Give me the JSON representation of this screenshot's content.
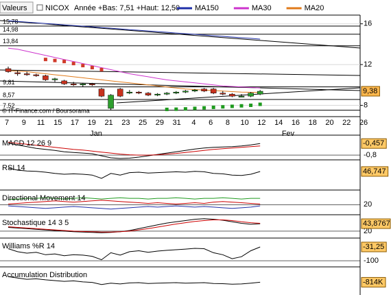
{
  "chart_data": [
    {
      "type": "candlestick",
      "header_label": "Valeurs",
      "title": "NICOX",
      "subtitle": "Année +Bas: 7,51 +Haut: 12,50",
      "annotation": "© IT-Finance.com / Boursorama",
      "x_labels": [
        "7",
        "9",
        "11",
        "15",
        "17",
        "19",
        "21",
        "23",
        "25",
        "29",
        "31",
        "4",
        "6",
        "8",
        "10",
        "12",
        "14",
        "16",
        "18",
        "20",
        "22",
        "26"
      ],
      "months": [
        "Jan",
        "Fev"
      ],
      "open": [
        11.6,
        11.2,
        11.1,
        11.0,
        10.9,
        10.5,
        10.4,
        10.1,
        10.0,
        10.1,
        9.6,
        7.7,
        9.6,
        9.3,
        9.3,
        9.2,
        9.0,
        9.1,
        9.2,
        9.3,
        9.4,
        9.6,
        9.6,
        9.2,
        9.1,
        8.9,
        8.9,
        9.1
      ],
      "high": [
        11.8,
        11.4,
        11.3,
        11.1,
        11.0,
        10.7,
        10.5,
        10.3,
        10.2,
        10.2,
        9.7,
        9.1,
        9.7,
        9.5,
        9.4,
        9.3,
        9.2,
        9.3,
        9.4,
        9.5,
        9.6,
        9.7,
        9.7,
        9.4,
        9.2,
        9.1,
        9.3,
        9.5
      ],
      "low": [
        11.2,
        10.9,
        10.9,
        10.8,
        10.4,
        10.3,
        10.0,
        9.9,
        9.8,
        9.9,
        8.8,
        7.5,
        8.8,
        9.1,
        9.1,
        8.9,
        8.9,
        9.0,
        9.1,
        9.2,
        9.3,
        9.3,
        9.1,
        9.0,
        8.8,
        8.8,
        8.8,
        9.0
      ],
      "close": [
        11.3,
        11.1,
        11.0,
        10.9,
        10.5,
        10.6,
        10.1,
        10.0,
        10.1,
        10.0,
        8.9,
        9.0,
        8.9,
        9.3,
        9.2,
        9.0,
        9.1,
        9.2,
        9.3,
        9.4,
        9.5,
        9.4,
        9.2,
        9.1,
        8.9,
        8.9,
        9.2,
        9.38
      ],
      "up_color": "#2e9e2e",
      "down_color": "#c8321e",
      "series": [
        {
          "name": "MA150",
          "color": "#1f2fa8",
          "values": [
            16.3,
            16.23,
            16.17,
            16.1,
            16.03,
            15.97,
            15.9,
            15.83,
            15.77,
            15.7,
            15.63,
            15.57,
            15.5,
            15.43,
            15.37,
            15.3,
            15.23,
            15.17,
            15.1,
            15.03,
            14.97,
            14.9,
            14.83,
            14.77,
            14.7,
            14.63,
            14.57,
            14.5
          ]
        },
        {
          "name": "MA30",
          "color": "#cc33cc",
          "values": [
            13.6,
            13.5,
            13.3,
            13.1,
            12.9,
            12.7,
            12.5,
            12.3,
            12.1,
            11.9,
            11.7,
            11.5,
            11.3,
            11.1,
            10.95,
            10.8,
            10.65,
            10.5,
            10.4,
            10.3,
            10.2,
            10.1,
            10.0,
            9.9,
            9.85,
            9.8,
            9.75,
            9.7
          ]
        },
        {
          "name": "MA20",
          "color": "#e07a1a",
          "values": [
            11.4,
            11.35,
            11.3,
            11.2,
            11.1,
            11.0,
            10.9,
            10.8,
            10.7,
            10.6,
            10.5,
            10.4,
            10.3,
            10.2,
            10.1,
            10.0,
            9.9,
            9.8,
            9.7,
            9.6,
            9.55,
            9.5,
            9.45,
            9.4,
            9.35,
            9.3,
            9.28,
            9.25
          ]
        }
      ],
      "dots": [
        {
          "color": "#d03a2a",
          "values": [
            null,
            null,
            null,
            null,
            12.5,
            12.4,
            12.3,
            12.1,
            11.9,
            11.7,
            11.5,
            null,
            null,
            null,
            null,
            null,
            null,
            null,
            null,
            null,
            null,
            null,
            null,
            null,
            null,
            null,
            null,
            null
          ]
        },
        {
          "color": "#1f9a1f",
          "values": [
            null,
            null,
            null,
            null,
            null,
            null,
            null,
            null,
            null,
            null,
            null,
            null,
            null,
            null,
            null,
            null,
            null,
            7.6,
            7.62,
            7.65,
            7.7,
            7.75,
            7.8,
            7.85,
            7.9,
            7.95,
            8.0,
            8.1
          ]
        }
      ],
      "levels": [
        {
          "value": 15.78,
          "label": "15,78"
        },
        {
          "value": 14.98,
          "label": "14,98"
        },
        {
          "value": 13.84,
          "label": "13,84"
        },
        {
          "value": 9.81,
          "label": "9,81"
        },
        {
          "value": 8.57,
          "label": "8,57"
        },
        {
          "value": 7.52,
          "label": "7,52"
        }
      ],
      "ylim": [
        6.89,
        16.72
      ],
      "yticks": [
        8,
        12,
        16
      ],
      "last_value": {
        "value": 9.38,
        "label": "9,38"
      },
      "grid": true
    },
    {
      "type": "line",
      "title": "MACD 12 26 9",
      "series": [
        {
          "color": "#000000",
          "values": [
            -0.45,
            -0.5,
            -0.55,
            -0.6,
            -0.63,
            -0.66,
            -0.7,
            -0.72,
            -0.74,
            -0.76,
            -0.82,
            -0.88,
            -0.9,
            -0.89,
            -0.86,
            -0.82,
            -0.78,
            -0.74,
            -0.7,
            -0.66,
            -0.62,
            -0.59,
            -0.57,
            -0.56,
            -0.55,
            -0.53,
            -0.5,
            -0.457
          ]
        },
        {
          "color": "#cc0000",
          "values": [
            -0.42,
            -0.45,
            -0.48,
            -0.51,
            -0.54,
            -0.57,
            -0.6,
            -0.63,
            -0.65,
            -0.68,
            -0.71,
            -0.74,
            -0.77,
            -0.79,
            -0.8,
            -0.8,
            -0.79,
            -0.77,
            -0.75,
            -0.72,
            -0.69,
            -0.66,
            -0.63,
            -0.61,
            -0.59,
            -0.57,
            -0.55,
            -0.53
          ]
        }
      ],
      "ylim": [
        -0.92,
        -0.27
      ],
      "yticks": [
        {
          "value": -0.8,
          "label": "-0,8"
        }
      ],
      "last_value": {
        "value": -0.457,
        "label": "-0,457"
      }
    },
    {
      "type": "line",
      "title": "RSI 14",
      "series": [
        {
          "color": "#000000",
          "values": [
            55,
            50,
            48,
            47,
            45,
            42,
            40,
            41,
            40,
            38,
            30,
            42,
            38,
            44,
            45,
            43,
            44,
            45,
            46,
            45,
            47,
            46,
            42,
            41,
            38,
            37,
            40,
            46.747
          ]
        }
      ],
      "ylim": [
        10,
        70
      ],
      "yticks": [],
      "last_value": {
        "value": 46.747,
        "label": "46,747"
      }
    },
    {
      "type": "line",
      "title": "Directional Movement 14",
      "series": [
        {
          "color": "#1f9a1f",
          "values": [
            28,
            29,
            30,
            30,
            31,
            30,
            29,
            30,
            31,
            30,
            29,
            30,
            31,
            30,
            30,
            29,
            30,
            30,
            31,
            30,
            29,
            30,
            30,
            31,
            30,
            29,
            30,
            30
          ]
        },
        {
          "color": "#cc0000",
          "values": [
            21,
            22,
            23,
            24,
            25,
            26,
            25,
            24,
            25,
            26,
            27,
            26,
            25,
            24,
            23,
            22,
            23,
            22,
            21,
            22,
            23,
            22,
            24,
            25,
            24,
            23,
            22,
            21
          ]
        },
        {
          "color": "#1f2fa8",
          "values": [
            18,
            17,
            16,
            15,
            14,
            15,
            16,
            17,
            16,
            15,
            14,
            13,
            14,
            15,
            16,
            17,
            16,
            17,
            18,
            17,
            16,
            17,
            16,
            15,
            14,
            15,
            16,
            18
          ]
        }
      ],
      "ylim": [
        5,
        40
      ],
      "yticks": [
        20
      ]
    },
    {
      "type": "line",
      "title": "Stochastique 14 3 5",
      "series": [
        {
          "color": "#000000",
          "values": [
            32,
            30,
            28,
            26,
            24,
            22,
            20,
            18,
            17,
            16,
            15,
            16,
            18,
            22,
            28,
            34,
            40,
            46,
            50,
            54,
            58,
            60,
            58,
            55,
            50,
            45,
            42,
            43.8767
          ]
        },
        {
          "color": "#cc0000",
          "values": [
            34,
            32,
            30,
            28,
            26,
            24,
            22,
            20,
            19,
            18,
            17,
            17,
            18,
            20,
            24,
            28,
            33,
            38,
            43,
            47,
            51,
            54,
            56,
            56,
            54,
            50,
            47,
            45
          ]
        }
      ],
      "ylim": [
        0,
        66
      ],
      "yticks": [
        20
      ],
      "last_value": {
        "value": 43.8767,
        "label": "43,8767"
      }
    },
    {
      "type": "line",
      "title": "Williams %R 14",
      "series": [
        {
          "color": "#000000",
          "values": [
            -40,
            -55,
            -62,
            -58,
            -70,
            -66,
            -75,
            -70,
            -72,
            -78,
            -95,
            -60,
            -72,
            -55,
            -50,
            -58,
            -52,
            -48,
            -45,
            -42,
            -38,
            -40,
            -60,
            -70,
            -90,
            -80,
            -50,
            -31.25
          ]
        }
      ],
      "ylim": [
        -117,
        3
      ],
      "yticks": [
        -100
      ],
      "last_value": {
        "value": -31.25,
        "label": "-31,25"
      }
    },
    {
      "type": "line",
      "title": "Accumulation Distribution",
      "series": [
        {
          "color": "#000000",
          "values": [
            -600000,
            -650000,
            -700000,
            -680000,
            -720000,
            -750000,
            -780000,
            -760000,
            -800000,
            -820000,
            -900000,
            -850000,
            -880000,
            -840000,
            -830000,
            -860000,
            -850000,
            -840000,
            -830000,
            -850000,
            -840000,
            -830000,
            -860000,
            -870000,
            -890000,
            -880000,
            -850000,
            -814000
          ]
        }
      ],
      "ylim": [
        -1200000,
        -300000
      ],
      "yticks": [],
      "last_value": {
        "value": -814000,
        "label": "-814K"
      }
    }
  ]
}
